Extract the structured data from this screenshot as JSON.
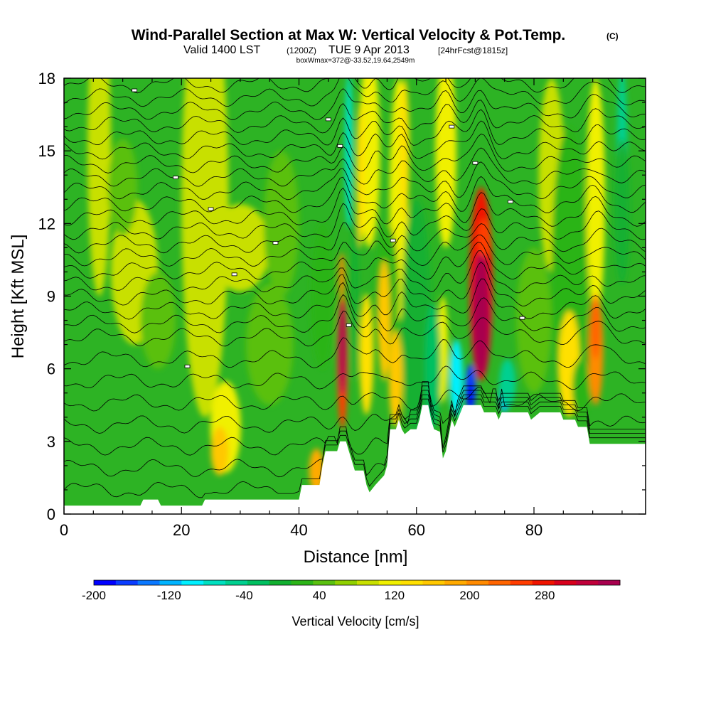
{
  "chart_data": {
    "type": "heatmap",
    "title": "Wind-Parallel Section at Max W: Vertical Velocity & Pot.Temp.",
    "title_mark": "(C)",
    "subtitle": {
      "valid": "Valid 1400 LST",
      "utc": "(1200Z)",
      "date": "TUE 9 Apr 2013",
      "forecast": "[24hrFcst@1815z]"
    },
    "annotation": "boxWmax=372@-33.52,19.64,2549m",
    "xlabel": "Distance [nm]",
    "ylabel": "Height [Kft MSL]",
    "xlim": [
      0,
      99
    ],
    "ylim": [
      0,
      18
    ],
    "xticks": [
      0,
      20,
      40,
      60,
      80
    ],
    "yticks": [
      0,
      3,
      6,
      9,
      12,
      15,
      18
    ],
    "grid": false,
    "colorbar": {
      "label": "Vertical Velocity [cm/s]",
      "min": -200,
      "max": 360,
      "step": 20,
      "tick_labels": [
        "-200",
        "-120",
        "-40",
        "40",
        "120",
        "200",
        "280"
      ],
      "tick_values": [
        -200,
        -120,
        -40,
        40,
        120,
        200,
        280
      ],
      "colors": [
        "#0000ff",
        "#0a3cff",
        "#0a78ff",
        "#00b4ff",
        "#00f0ff",
        "#00e0c0",
        "#00d090",
        "#00c060",
        "#12b030",
        "#2cb418",
        "#5ac010",
        "#90d000",
        "#c8e000",
        "#f0f000",
        "#ffe000",
        "#ffc800",
        "#ffaa00",
        "#ff8a00",
        "#ff6400",
        "#ff3c00",
        "#f01400",
        "#d8001c",
        "#c0003a",
        "#a8004e"
      ]
    },
    "terrain_kft": [
      [
        0,
        0.35
      ],
      [
        13,
        0.35
      ],
      [
        13.5,
        0.6
      ],
      [
        16,
        0.6
      ],
      [
        16.5,
        0.35
      ],
      [
        23.5,
        0.35
      ],
      [
        24,
        0.6
      ],
      [
        40,
        0.6
      ],
      [
        40.5,
        1.2
      ],
      [
        43.5,
        1.2
      ],
      [
        44,
        2
      ],
      [
        44.5,
        2.6
      ],
      [
        46.5,
        2.6
      ],
      [
        47,
        3
      ],
      [
        48,
        3
      ],
      [
        48.5,
        2.6
      ],
      [
        49,
        2.2
      ],
      [
        49.5,
        1.8
      ],
      [
        51,
        1.8
      ],
      [
        51.5,
        1.2
      ],
      [
        52,
        0.9
      ],
      [
        53,
        1.2
      ],
      [
        54.5,
        1.6
      ],
      [
        55,
        2
      ],
      [
        55.5,
        3.5
      ],
      [
        56.5,
        3.5
      ],
      [
        57,
        3.9
      ],
      [
        57.5,
        3.5
      ],
      [
        58,
        3.3
      ],
      [
        59,
        3.5
      ],
      [
        60,
        3.5
      ],
      [
        60.5,
        3.9
      ],
      [
        61,
        4.5
      ],
      [
        62,
        4.5
      ],
      [
        62.5,
        3.9
      ],
      [
        63,
        3.5
      ],
      [
        64,
        3.4
      ],
      [
        64.5,
        2.3
      ],
      [
        65,
        2.6
      ],
      [
        66,
        3.9
      ],
      [
        66.5,
        3.6
      ],
      [
        67,
        3.9
      ],
      [
        68,
        4.5
      ],
      [
        71,
        4.5
      ],
      [
        71.5,
        4.2
      ],
      [
        73.5,
        4.2
      ],
      [
        74,
        3.9
      ],
      [
        74.5,
        4.2
      ],
      [
        79,
        4.2
      ],
      [
        79.5,
        3.9
      ],
      [
        81,
        4.2
      ],
      [
        84.5,
        4.2
      ],
      [
        85,
        3.9
      ],
      [
        87,
        3.9
      ],
      [
        87.5,
        3.6
      ],
      [
        89,
        3.6
      ],
      [
        89.5,
        2.9
      ],
      [
        99,
        2.9
      ]
    ],
    "updrafts": [
      {
        "x": 47.4,
        "z": 6.6,
        "peak_cm_s": 260
      },
      {
        "x": 71,
        "z": 8.4,
        "peak_cm_s": 372
      },
      {
        "x": 90.5,
        "z": 6.8,
        "peak_cm_s": 130
      },
      {
        "x": 27.5,
        "z": 3.6,
        "peak_cm_s": 60
      }
    ],
    "downdrafts": [
      {
        "x": 69.2,
        "z": 5,
        "peak_cm_s": -200
      },
      {
        "x": 75,
        "z": 4.9,
        "peak_cm_s": -150
      },
      {
        "x": 62.5,
        "z": 6,
        "peak_cm_s": -70
      },
      {
        "x": 48.5,
        "z": 15,
        "peak_cm_s": -90
      }
    ]
  }
}
